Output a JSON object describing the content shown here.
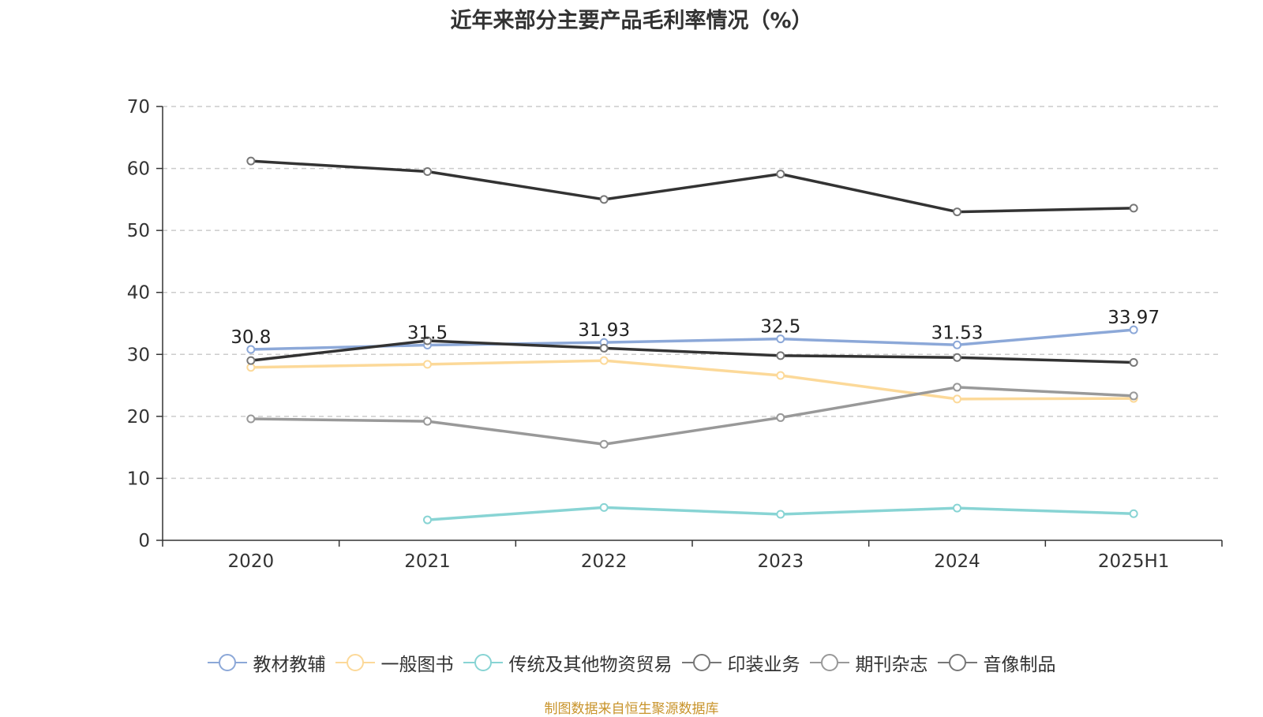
{
  "chart_data": {
    "type": "line",
    "title": "近年来部分主要产品毛利率情况（%）",
    "categories": [
      "2020",
      "2021",
      "2022",
      "2023",
      "2024",
      "2025H1"
    ],
    "ylim": [
      0,
      70
    ],
    "yticks": [
      0,
      10,
      20,
      30,
      40,
      50,
      60,
      70
    ],
    "grid": true,
    "legend_position": "bottom",
    "series": [
      {
        "name": "教材教辅",
        "color": "#8ca8d8",
        "values": [
          30.8,
          31.5,
          31.93,
          32.5,
          31.53,
          33.97
        ],
        "labels": [
          "30.8",
          "31.5",
          "31.93",
          "32.5",
          "31.53",
          "33.97"
        ]
      },
      {
        "name": "一般图书",
        "color": "#fcd999",
        "values": [
          27.9,
          28.4,
          29.0,
          26.6,
          22.8,
          22.9
        ]
      },
      {
        "name": "传统及其他物资贸易",
        "color": "#88d4d4",
        "values": [
          null,
          3.3,
          5.3,
          4.2,
          5.2,
          4.3
        ]
      },
      {
        "name": "印装业务",
        "color": "#333333",
        "values": [
          29.0,
          32.2,
          31.0,
          29.8,
          29.5,
          28.7
        ]
      },
      {
        "name": "期刊杂志",
        "color": "#999999",
        "values": [
          19.6,
          19.2,
          15.5,
          19.8,
          24.7,
          23.3
        ]
      },
      {
        "name": "音像制品",
        "color": "#333333",
        "values": [
          61.2,
          59.5,
          55.0,
          59.1,
          53.0,
          53.6
        ]
      }
    ]
  },
  "footer": {
    "source": "制图数据来自恒生聚源数据库"
  }
}
